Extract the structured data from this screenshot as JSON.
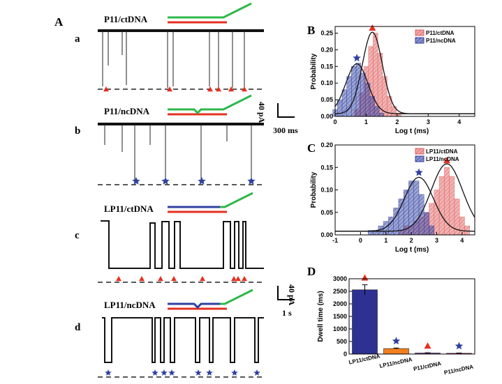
{
  "panels": {
    "A": "A",
    "B": "B",
    "C": "C",
    "D": "D",
    "sub": {
      "a": "a",
      "b": "b",
      "c": "c",
      "d": "d"
    }
  },
  "traces": {
    "a": {
      "label": "P11/ctDNA"
    },
    "b": {
      "label": "P11/ncDNA"
    },
    "c": {
      "label": "LP11/ctDNA"
    },
    "d": {
      "label": "LP11/ncDNA"
    }
  },
  "scale_bars": {
    "top": {
      "current": "40 pA",
      "time": "300 ms"
    },
    "bottom": {
      "current": "40 pA",
      "time": "1 s"
    }
  },
  "colors": {
    "red": "#e53020",
    "blue": "#3040a0",
    "green": "#2eb84a",
    "orange": "#f28020",
    "pink": "#e06060",
    "navy": "#2e3192"
  },
  "chart_data": [
    {
      "panel": "B",
      "type": "bar",
      "xlabel": "Log t (ms)",
      "ylabel": "Probability",
      "xlim": [
        0,
        4.5
      ],
      "ylim": [
        0,
        0.27
      ],
      "xticks": [
        "0",
        "1",
        "2",
        "3",
        "4"
      ],
      "yticks": [
        "0.00",
        "0.05",
        "0.10",
        "0.15",
        "0.20",
        "0.25"
      ],
      "legend_position": "top-right",
      "series": [
        {
          "name": "P11/ctDNA",
          "color": "#e06060",
          "marker": "triangle",
          "bins": [
            0.7,
            0.85,
            1.0,
            1.15,
            1.3,
            1.45,
            1.6,
            1.75,
            1.9,
            2.05
          ],
          "values": [
            0.02,
            0.07,
            0.15,
            0.21,
            0.25,
            0.19,
            0.12,
            0.06,
            0.03,
            0.01
          ],
          "fit_peak": [
            1.2,
            0.245
          ]
        },
        {
          "name": "P11/ncDNA",
          "color": "#3040a0",
          "marker": "star",
          "bins": [
            0.0,
            0.15,
            0.3,
            0.45,
            0.6,
            0.75,
            0.9,
            1.05,
            1.2,
            1.35,
            1.5
          ],
          "values": [
            0.02,
            0.05,
            0.08,
            0.12,
            0.15,
            0.16,
            0.13,
            0.1,
            0.06,
            0.03,
            0.01
          ],
          "fit_peak": [
            0.7,
            0.15
          ]
        }
      ]
    },
    {
      "panel": "C",
      "type": "bar",
      "xlabel": "Log t (ms)",
      "ylabel": "Probability",
      "xlim": [
        -1,
        4.5
      ],
      "ylim": [
        0,
        0.2
      ],
      "xticks": [
        "-1",
        "0",
        "1",
        "2",
        "3",
        "4"
      ],
      "yticks": [
        "0.00",
        "0.05",
        "0.10",
        "0.15",
        "0.20"
      ],
      "legend_position": "top-right",
      "series": [
        {
          "name": "LP11/ctDNA",
          "color": "#e06060",
          "marker": "triangle",
          "bins": [
            1.6,
            1.8,
            2.0,
            2.2,
            2.4,
            2.6,
            2.8,
            3.0,
            3.2,
            3.4,
            3.6,
            3.8,
            4.0,
            4.2
          ],
          "values": [
            0.01,
            0.02,
            0.02,
            0.03,
            0.04,
            0.05,
            0.07,
            0.1,
            0.13,
            0.15,
            0.13,
            0.08,
            0.04,
            0.02
          ],
          "fit_peak": [
            3.4,
            0.15
          ]
        },
        {
          "name": "LP11/ncDNA",
          "color": "#3040a0",
          "marker": "star",
          "bins": [
            0.4,
            0.6,
            0.8,
            1.0,
            1.2,
            1.4,
            1.6,
            1.8,
            2.0,
            2.2,
            2.4,
            2.6,
            2.8
          ],
          "values": [
            0.01,
            0.01,
            0.02,
            0.03,
            0.04,
            0.06,
            0.08,
            0.1,
            0.12,
            0.12,
            0.09,
            0.05,
            0.02
          ],
          "fit_peak": [
            2.3,
            0.12
          ]
        }
      ]
    },
    {
      "panel": "D",
      "type": "bar",
      "ylabel": "Dwell time (ms)",
      "ylim": [
        0,
        3000
      ],
      "yticks": [
        "0",
        "500",
        "1000",
        "1500",
        "2000",
        "2500",
        "3000"
      ],
      "categories": [
        "LP11/ctDNA",
        "LP11/ncDNA",
        "P11/ctDNA",
        "P11/ncDNA"
      ],
      "values": [
        2560,
        220,
        40,
        30
      ],
      "errors": [
        200,
        20,
        10,
        10
      ],
      "bar_colors": [
        "#2e3192",
        "#f28020",
        "#7030a0",
        "#e0208a"
      ],
      "markers": [
        "triangle",
        "star",
        "triangle",
        "star"
      ]
    }
  ]
}
